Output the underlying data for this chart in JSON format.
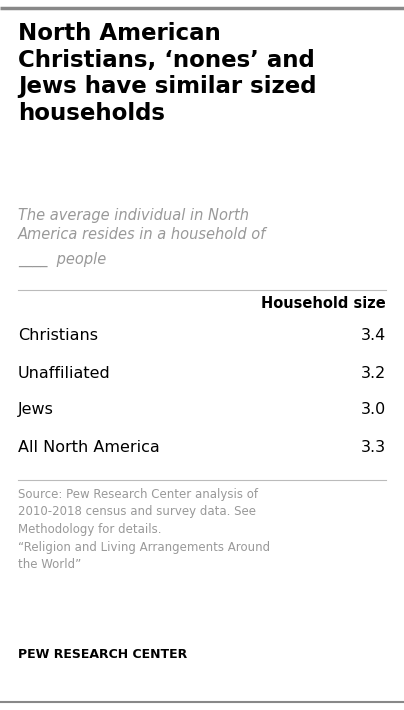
{
  "title": "North American\nChristians, ‘nones’ and\nJews have similar sized\nhouseholds",
  "subtitle_line1": "The average individual in North",
  "subtitle_line2": "America resides in a household of",
  "subtitle_blank": "____",
  "subtitle_people": " people",
  "col_header": "Household size",
  "rows": [
    {
      "label": "Christians",
      "value": "3.4"
    },
    {
      "label": "Unaffiliated",
      "value": "3.2"
    },
    {
      "label": "Jews",
      "value": "3.0"
    },
    {
      "label": "All North America",
      "value": "3.3"
    }
  ],
  "source_text": "Source: Pew Research Center analysis of\n2010-2018 census and survey data. See\nMethodology for details.\n“Religion and Living Arrangements Around\nthe World”",
  "footer": "PEW RESEARCH CENTER",
  "bg_color": "#ffffff",
  "title_color": "#000000",
  "subtitle_color": "#999999",
  "header_color": "#000000",
  "row_label_color": "#000000",
  "row_value_color": "#000000",
  "source_color": "#999999",
  "footer_color": "#000000",
  "separator_color": "#bbbbbb",
  "top_bar_color": "#888888"
}
